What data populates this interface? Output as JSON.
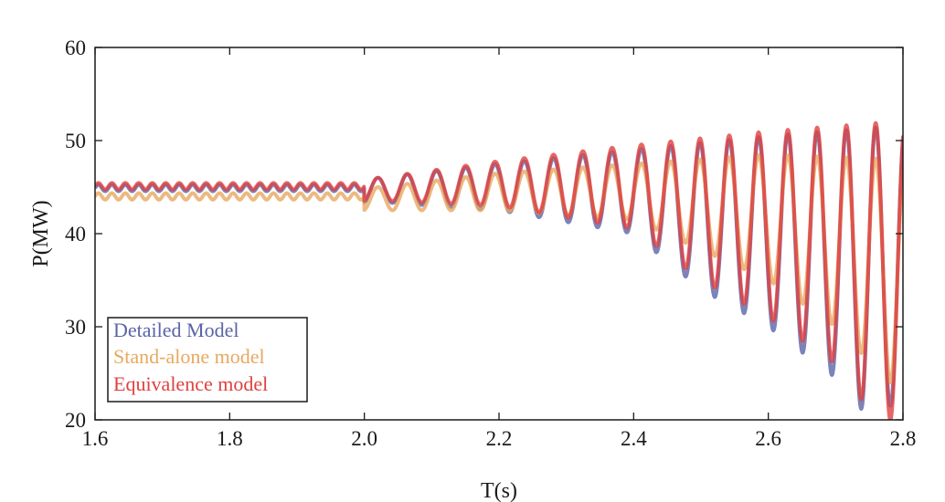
{
  "chart_data": {
    "type": "line",
    "xlabel": "T(s)",
    "ylabel": "P(MW)",
    "xlim": [
      1.6,
      2.8
    ],
    "ylim": [
      20,
      60
    ],
    "xticks": [
      1.6,
      1.8,
      2.0,
      2.2,
      2.4,
      2.6,
      2.8
    ],
    "yticks": [
      20,
      30,
      40,
      50,
      60
    ],
    "xtick_labels": [
      "1.6",
      "1.8",
      "2.0",
      "2.2",
      "2.4",
      "2.6",
      "2.8"
    ],
    "ytick_labels": [
      "20",
      "30",
      "40",
      "50",
      "60"
    ],
    "grid": false,
    "legend_position": "bottom-left",
    "fault_time": 2.0,
    "oscillation_period": 0.0435,
    "series": [
      {
        "name": "Detailed Model",
        "color": "#5a64a8",
        "pre_fault_mean": 44.9,
        "pre_fault_ripple": 0.35,
        "peaks": [
          [
            2.02,
            46.0
          ],
          [
            2.2,
            47.5
          ],
          [
            2.4,
            49.0
          ],
          [
            2.6,
            50.5
          ],
          [
            2.78,
            51.5
          ]
        ],
        "troughs": [
          [
            2.04,
            43.3
          ],
          [
            2.2,
            42.5
          ],
          [
            2.4,
            40.0
          ],
          [
            2.5,
            34.0
          ],
          [
            2.6,
            30.0
          ],
          [
            2.7,
            24.5
          ],
          [
            2.74,
            21.0
          ],
          [
            2.78,
            21.5
          ]
        ]
      },
      {
        "name": "Stand-alone model",
        "color": "#e8a860",
        "pre_fault_mean": 44.0,
        "pre_fault_ripple": 0.35,
        "peaks": [
          [
            2.02,
            45.0
          ],
          [
            2.2,
            46.5
          ],
          [
            2.4,
            47.5
          ],
          [
            2.6,
            48.5
          ],
          [
            2.78,
            48.0
          ]
        ],
        "troughs": [
          [
            2.04,
            42.5
          ],
          [
            2.2,
            42.5
          ],
          [
            2.4,
            41.5
          ],
          [
            2.6,
            35.0
          ],
          [
            2.7,
            30.0
          ],
          [
            2.78,
            24.0
          ]
        ]
      },
      {
        "name": "Equivalence model",
        "color": "#e04040",
        "pre_fault_mean": 45.1,
        "pre_fault_ripple": 0.35,
        "peaks": [
          [
            2.02,
            46.0
          ],
          [
            2.2,
            47.8
          ],
          [
            2.4,
            49.5
          ],
          [
            2.6,
            51.0
          ],
          [
            2.78,
            52.0
          ]
        ],
        "troughs": [
          [
            2.04,
            43.5
          ],
          [
            2.2,
            43.0
          ],
          [
            2.4,
            40.5
          ],
          [
            2.5,
            35.0
          ],
          [
            2.6,
            31.0
          ],
          [
            2.7,
            26.0
          ],
          [
            2.74,
            22.0
          ],
          [
            2.78,
            20.0
          ]
        ]
      }
    ]
  }
}
